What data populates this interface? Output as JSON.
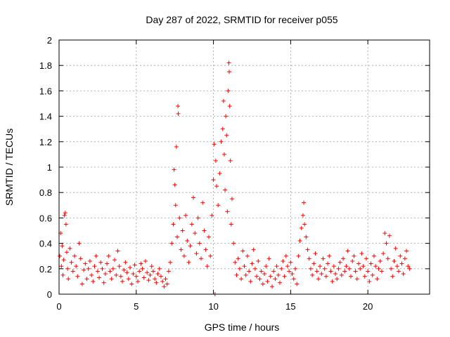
{
  "chart_data": {
    "type": "scatter",
    "title": "Day 287 of 2022, SRMTID for receiver p055",
    "xlabel": "GPS time / hours",
    "ylabel": "SRMTID / TECUs",
    "xlim": [
      0,
      24
    ],
    "ylim": [
      0,
      2
    ],
    "xticks": [
      0,
      5,
      10,
      15,
      20
    ],
    "yticks": [
      0,
      0.2,
      0.4,
      0.6,
      0.8,
      1,
      1.2,
      1.4,
      1.6,
      1.8,
      2
    ],
    "xtick_labels": [
      "0",
      "5",
      "10",
      "15",
      "20"
    ],
    "ytick_labels": [
      "0",
      "0.2",
      "0.4",
      "0.6",
      "0.8",
      "1",
      "1.2",
      "1.4",
      "1.6",
      "1.8",
      "2"
    ],
    "grid": true,
    "marker": "+",
    "color": "#ff0000",
    "series": [
      {
        "name": "SRMTID",
        "points": [
          [
            0.05,
            0.3
          ],
          [
            0.1,
            0.48
          ],
          [
            0.15,
            0.22
          ],
          [
            0.2,
            0.38
          ],
          [
            0.25,
            0.15
          ],
          [
            0.3,
            0.27
          ],
          [
            0.35,
            0.62
          ],
          [
            0.4,
            0.64
          ],
          [
            0.45,
            0.55
          ],
          [
            0.5,
            0.33
          ],
          [
            0.55,
            0.2
          ],
          [
            0.6,
            0.12
          ],
          [
            0.7,
            0.36
          ],
          [
            0.8,
            0.25
          ],
          [
            0.9,
            0.18
          ],
          [
            1.0,
            0.3
          ],
          [
            1.1,
            0.22
          ],
          [
            1.2,
            0.14
          ],
          [
            1.3,
            0.4
          ],
          [
            1.4,
            0.28
          ],
          [
            1.5,
            0.08
          ],
          [
            1.6,
            0.19
          ],
          [
            1.7,
            0.24
          ],
          [
            1.8,
            0.12
          ],
          [
            1.9,
            0.2
          ],
          [
            2.0,
            0.26
          ],
          [
            2.1,
            0.15
          ],
          [
            2.2,
            0.1
          ],
          [
            2.3,
            0.22
          ],
          [
            2.4,
            0.3
          ],
          [
            2.5,
            0.18
          ],
          [
            2.6,
            0.13
          ],
          [
            2.7,
            0.25
          ],
          [
            2.8,
            0.2
          ],
          [
            2.9,
            0.09
          ],
          [
            3.0,
            0.16
          ],
          [
            3.1,
            0.24
          ],
          [
            3.2,
            0.3
          ],
          [
            3.3,
            0.18
          ],
          [
            3.4,
            0.12
          ],
          [
            3.5,
            0.2
          ],
          [
            3.6,
            0.27
          ],
          [
            3.7,
            0.15
          ],
          [
            3.8,
            0.34
          ],
          [
            3.9,
            0.22
          ],
          [
            4.0,
            0.14
          ],
          [
            4.1,
            0.1
          ],
          [
            4.2,
            0.19
          ],
          [
            4.3,
            0.25
          ],
          [
            4.4,
            0.17
          ],
          [
            4.5,
            0.12
          ],
          [
            4.6,
            0.21
          ],
          [
            4.7,
            0.08
          ],
          [
            4.8,
            0.16
          ],
          [
            4.9,
            0.23
          ],
          [
            5.0,
            0.14
          ],
          [
            5.1,
            0.1
          ],
          [
            5.2,
            0.18
          ],
          [
            5.3,
            0.24
          ],
          [
            5.4,
            0.2
          ],
          [
            5.5,
            0.13
          ],
          [
            5.6,
            0.26
          ],
          [
            5.7,
            0.17
          ],
          [
            5.8,
            0.11
          ],
          [
            5.9,
            0.15
          ],
          [
            6.0,
            0.22
          ],
          [
            6.1,
            0.18
          ],
          [
            6.2,
            0.12
          ],
          [
            6.3,
            0.09
          ],
          [
            6.4,
            0.16
          ],
          [
            6.5,
            0.2
          ],
          [
            6.6,
            0.14
          ],
          [
            6.7,
            0.1
          ],
          [
            6.8,
            0.06
          ],
          [
            6.9,
            0.12
          ],
          [
            7.0,
            0.08
          ],
          [
            7.1,
            0.18
          ],
          [
            7.2,
            0.25
          ],
          [
            7.3,
            0.4
          ],
          [
            7.4,
            0.55
          ],
          [
            7.45,
            0.98
          ],
          [
            7.5,
            0.86
          ],
          [
            7.55,
            0.7
          ],
          [
            7.6,
            1.16
          ],
          [
            7.65,
            0.45
          ],
          [
            7.7,
            1.48
          ],
          [
            7.72,
            1.42
          ],
          [
            7.8,
            0.6
          ],
          [
            7.9,
            0.35
          ],
          [
            8.0,
            0.5
          ],
          [
            8.1,
            0.3
          ],
          [
            8.2,
            0.62
          ],
          [
            8.3,
            0.42
          ],
          [
            8.4,
            0.25
          ],
          [
            8.5,
            0.38
          ],
          [
            8.6,
            0.55
          ],
          [
            8.7,
            0.76
          ],
          [
            8.8,
            0.48
          ],
          [
            8.9,
            0.32
          ],
          [
            9.0,
            0.6
          ],
          [
            9.1,
            0.4
          ],
          [
            9.2,
            0.28
          ],
          [
            9.3,
            0.72
          ],
          [
            9.4,
            0.5
          ],
          [
            9.5,
            0.35
          ],
          [
            9.6,
            0.22
          ],
          [
            9.7,
            0.45
          ],
          [
            9.8,
            0.3
          ],
          [
            9.9,
            0.62
          ],
          [
            10.0,
            0.9
          ],
          [
            10.05,
            1.18
          ],
          [
            10.1,
            0.0
          ],
          [
            10.15,
            1.05
          ],
          [
            10.2,
            0.85
          ],
          [
            10.3,
            0.7
          ],
          [
            10.4,
            0.95
          ],
          [
            10.5,
            1.2
          ],
          [
            10.6,
            1.3
          ],
          [
            10.65,
            1.52
          ],
          [
            10.7,
            1.1
          ],
          [
            10.75,
            0.82
          ],
          [
            10.8,
            1.4
          ],
          [
            10.85,
            1.25
          ],
          [
            10.9,
            0.65
          ],
          [
            10.95,
            1.6
          ],
          [
            11.0,
            1.82
          ],
          [
            11.02,
            1.75
          ],
          [
            11.05,
            1.48
          ],
          [
            11.1,
            1.05
          ],
          [
            11.15,
            0.55
          ],
          [
            11.2,
            0.75
          ],
          [
            11.3,
            0.4
          ],
          [
            11.4,
            0.25
          ],
          [
            11.5,
            0.15
          ],
          [
            11.6,
            0.28
          ],
          [
            11.7,
            0.2
          ],
          [
            11.8,
            0.12
          ],
          [
            11.9,
            0.34
          ],
          [
            12.0,
            0.22
          ],
          [
            12.1,
            0.15
          ],
          [
            12.2,
            0.3
          ],
          [
            12.3,
            0.18
          ],
          [
            12.4,
            0.1
          ],
          [
            12.5,
            0.24
          ],
          [
            12.6,
            0.35
          ],
          [
            12.7,
            0.2
          ],
          [
            12.8,
            0.14
          ],
          [
            12.9,
            0.26
          ],
          [
            13.0,
            0.12
          ],
          [
            13.1,
            0.18
          ],
          [
            13.2,
            0.08
          ],
          [
            13.3,
            0.16
          ],
          [
            13.4,
            0.22
          ],
          [
            13.5,
            0.1
          ],
          [
            13.6,
            0.28
          ],
          [
            13.7,
            0.14
          ],
          [
            13.8,
            0.06
          ],
          [
            13.9,
            0.18
          ],
          [
            14.0,
            0.12
          ],
          [
            14.1,
            0.22
          ],
          [
            14.2,
            0.15
          ],
          [
            14.3,
            0.09
          ],
          [
            14.4,
            0.2
          ],
          [
            14.5,
            0.26
          ],
          [
            14.6,
            0.14
          ],
          [
            14.7,
            0.3
          ],
          [
            14.8,
            0.22
          ],
          [
            14.9,
            0.18
          ],
          [
            15.0,
            0.25
          ],
          [
            15.1,
            0.16
          ],
          [
            15.2,
            0.12
          ],
          [
            15.3,
            0.2
          ],
          [
            15.4,
            0.08
          ],
          [
            15.5,
            0.3
          ],
          [
            15.6,
            0.42
          ],
          [
            15.7,
            0.52
          ],
          [
            15.8,
            0.62
          ],
          [
            15.85,
            0.72
          ],
          [
            15.9,
            0.55
          ],
          [
            16.0,
            0.45
          ],
          [
            16.1,
            0.35
          ],
          [
            16.2,
            0.28
          ],
          [
            16.3,
            0.2
          ],
          [
            16.4,
            0.15
          ],
          [
            16.5,
            0.24
          ],
          [
            16.6,
            0.32
          ],
          [
            16.7,
            0.18
          ],
          [
            16.8,
            0.12
          ],
          [
            16.9,
            0.22
          ],
          [
            17.0,
            0.16
          ],
          [
            17.1,
            0.28
          ],
          [
            17.2,
            0.2
          ],
          [
            17.3,
            0.14
          ],
          [
            17.4,
            0.24
          ],
          [
            17.5,
            0.3
          ],
          [
            17.6,
            0.18
          ],
          [
            17.7,
            0.1
          ],
          [
            17.8,
            0.22
          ],
          [
            17.9,
            0.16
          ],
          [
            18.0,
            0.12
          ],
          [
            18.1,
            0.2
          ],
          [
            18.2,
            0.25
          ],
          [
            18.3,
            0.15
          ],
          [
            18.4,
            0.28
          ],
          [
            18.5,
            0.18
          ],
          [
            18.6,
            0.22
          ],
          [
            18.7,
            0.34
          ],
          [
            18.8,
            0.2
          ],
          [
            18.9,
            0.14
          ],
          [
            19.0,
            0.26
          ],
          [
            19.1,
            0.3
          ],
          [
            19.2,
            0.18
          ],
          [
            19.3,
            0.12
          ],
          [
            19.4,
            0.24
          ],
          [
            19.5,
            0.2
          ],
          [
            19.6,
            0.32
          ],
          [
            19.7,
            0.22
          ],
          [
            19.8,
            0.14
          ],
          [
            19.9,
            0.28
          ],
          [
            20.0,
            0.18
          ],
          [
            20.1,
            0.1
          ],
          [
            20.2,
            0.24
          ],
          [
            20.3,
            0.15
          ],
          [
            20.4,
            0.3
          ],
          [
            20.5,
            0.22
          ],
          [
            20.6,
            0.12
          ],
          [
            20.7,
            0.2
          ],
          [
            20.8,
            0.26
          ],
          [
            20.9,
            0.18
          ],
          [
            21.0,
            0.32
          ],
          [
            21.1,
            0.48
          ],
          [
            21.2,
            0.4
          ],
          [
            21.3,
            0.28
          ],
          [
            21.4,
            0.46
          ],
          [
            21.5,
            0.2
          ],
          [
            21.6,
            0.14
          ],
          [
            21.7,
            0.26
          ],
          [
            21.8,
            0.36
          ],
          [
            21.9,
            0.22
          ],
          [
            22.0,
            0.18
          ],
          [
            22.1,
            0.3
          ],
          [
            22.2,
            0.24
          ],
          [
            22.3,
            0.16
          ],
          [
            22.4,
            0.28
          ],
          [
            22.5,
            0.34
          ],
          [
            22.6,
            0.22
          ],
          [
            22.7,
            0.2
          ]
        ]
      }
    ]
  }
}
